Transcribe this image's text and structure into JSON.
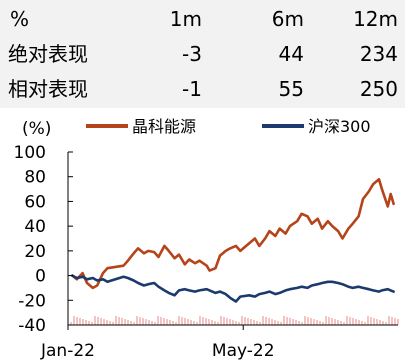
{
  "performance_table": {
    "header": {
      "label": "%",
      "m1": "1m",
      "m6": "6m",
      "m12": "12m"
    },
    "rows": [
      {
        "label": "绝对表现",
        "m1": "-3",
        "m6": "44",
        "m12": "234"
      },
      {
        "label": "相对表现",
        "m1": "-1",
        "m6": "55",
        "m12": "250"
      }
    ]
  },
  "chart_data": {
    "type": "line",
    "ylabel": "(%)",
    "ylim": [
      -40,
      100
    ],
    "yticks": [
      -40,
      -20,
      0,
      20,
      40,
      60,
      80,
      100
    ],
    "xlim": [
      "2022-01-01",
      "2022-08-15"
    ],
    "xticks": [
      {
        "date": "2022-01-01",
        "label": "Jan-22"
      },
      {
        "date": "2022-05-01",
        "label": "May-22"
      }
    ],
    "grid": false,
    "legend_position": "top",
    "series": [
      {
        "name": "晶科能源",
        "color": "#b5441a",
        "points": [
          [
            "2022-01-04",
            0
          ],
          [
            "2022-01-07",
            -3
          ],
          [
            "2022-01-11",
            2
          ],
          [
            "2022-01-14",
            -6
          ],
          [
            "2022-01-18",
            -10
          ],
          [
            "2022-01-21",
            -8
          ],
          [
            "2022-01-25",
            2
          ],
          [
            "2022-01-28",
            6
          ],
          [
            "2022-02-08",
            8
          ],
          [
            "2022-02-11",
            12
          ],
          [
            "2022-02-15",
            18
          ],
          [
            "2022-02-18",
            22
          ],
          [
            "2022-02-22",
            18
          ],
          [
            "2022-02-25",
            20
          ],
          [
            "2022-03-01",
            19
          ],
          [
            "2022-03-04",
            15
          ],
          [
            "2022-03-08",
            24
          ],
          [
            "2022-03-11",
            20
          ],
          [
            "2022-03-15",
            14
          ],
          [
            "2022-03-18",
            17
          ],
          [
            "2022-03-22",
            9
          ],
          [
            "2022-03-25",
            13
          ],
          [
            "2022-03-29",
            10
          ],
          [
            "2022-04-01",
            12
          ],
          [
            "2022-04-06",
            8
          ],
          [
            "2022-04-08",
            4
          ],
          [
            "2022-04-12",
            6
          ],
          [
            "2022-04-15",
            16
          ],
          [
            "2022-04-19",
            20
          ],
          [
            "2022-04-22",
            22
          ],
          [
            "2022-04-26",
            24
          ],
          [
            "2022-04-29",
            20
          ],
          [
            "2022-05-05",
            26
          ],
          [
            "2022-05-09",
            30
          ],
          [
            "2022-05-12",
            24
          ],
          [
            "2022-05-16",
            30
          ],
          [
            "2022-05-19",
            36
          ],
          [
            "2022-05-23",
            32
          ],
          [
            "2022-05-26",
            38
          ],
          [
            "2022-05-30",
            34
          ],
          [
            "2022-06-02",
            40
          ],
          [
            "2022-06-07",
            44
          ],
          [
            "2022-06-10",
            50
          ],
          [
            "2022-06-14",
            48
          ],
          [
            "2022-06-17",
            42
          ],
          [
            "2022-06-21",
            46
          ],
          [
            "2022-06-24",
            38
          ],
          [
            "2022-06-28",
            44
          ],
          [
            "2022-07-01",
            40
          ],
          [
            "2022-07-05",
            36
          ],
          [
            "2022-07-08",
            30
          ],
          [
            "2022-07-12",
            38
          ],
          [
            "2022-07-15",
            42
          ],
          [
            "2022-07-19",
            48
          ],
          [
            "2022-07-22",
            62
          ],
          [
            "2022-07-26",
            68
          ],
          [
            "2022-07-29",
            74
          ],
          [
            "2022-08-02",
            78
          ],
          [
            "2022-08-04",
            70
          ],
          [
            "2022-08-08",
            56
          ],
          [
            "2022-08-10",
            66
          ],
          [
            "2022-08-12",
            58
          ]
        ]
      },
      {
        "name": "沪深300",
        "color": "#1c3a6e",
        "points": [
          [
            "2022-01-04",
            0
          ],
          [
            "2022-01-07",
            -2
          ],
          [
            "2022-01-11",
            -1
          ],
          [
            "2022-01-14",
            -3
          ],
          [
            "2022-01-18",
            -2
          ],
          [
            "2022-01-21",
            -4
          ],
          [
            "2022-01-25",
            -3
          ],
          [
            "2022-01-28",
            -5
          ],
          [
            "2022-02-08",
            -1
          ],
          [
            "2022-02-11",
            -2
          ],
          [
            "2022-02-15",
            -4
          ],
          [
            "2022-02-18",
            -6
          ],
          [
            "2022-02-22",
            -8
          ],
          [
            "2022-02-25",
            -7
          ],
          [
            "2022-03-01",
            -6
          ],
          [
            "2022-03-04",
            -9
          ],
          [
            "2022-03-08",
            -12
          ],
          [
            "2022-03-11",
            -14
          ],
          [
            "2022-03-15",
            -16
          ],
          [
            "2022-03-18",
            -12
          ],
          [
            "2022-03-22",
            -11
          ],
          [
            "2022-03-25",
            -12
          ],
          [
            "2022-03-29",
            -13
          ],
          [
            "2022-04-01",
            -12
          ],
          [
            "2022-04-06",
            -11
          ],
          [
            "2022-04-08",
            -12
          ],
          [
            "2022-04-12",
            -14
          ],
          [
            "2022-04-15",
            -13
          ],
          [
            "2022-04-19",
            -15
          ],
          [
            "2022-04-22",
            -18
          ],
          [
            "2022-04-26",
            -21
          ],
          [
            "2022-04-29",
            -17
          ],
          [
            "2022-05-05",
            -16
          ],
          [
            "2022-05-09",
            -17
          ],
          [
            "2022-05-12",
            -15
          ],
          [
            "2022-05-16",
            -14
          ],
          [
            "2022-05-19",
            -13
          ],
          [
            "2022-05-23",
            -15
          ],
          [
            "2022-05-26",
            -14
          ],
          [
            "2022-05-30",
            -12
          ],
          [
            "2022-06-02",
            -11
          ],
          [
            "2022-06-07",
            -10
          ],
          [
            "2022-06-10",
            -9
          ],
          [
            "2022-06-14",
            -10
          ],
          [
            "2022-06-17",
            -8
          ],
          [
            "2022-06-21",
            -7
          ],
          [
            "2022-06-24",
            -6
          ],
          [
            "2022-06-28",
            -5
          ],
          [
            "2022-07-01",
            -5
          ],
          [
            "2022-07-05",
            -6
          ],
          [
            "2022-07-08",
            -7
          ],
          [
            "2022-07-12",
            -9
          ],
          [
            "2022-07-15",
            -10
          ],
          [
            "2022-07-19",
            -9
          ],
          [
            "2022-07-22",
            -10
          ],
          [
            "2022-07-26",
            -11
          ],
          [
            "2022-07-29",
            -12
          ],
          [
            "2022-08-02",
            -13
          ],
          [
            "2022-08-04",
            -12
          ],
          [
            "2022-08-08",
            -11
          ],
          [
            "2022-08-10",
            -12
          ],
          [
            "2022-08-12",
            -13
          ]
        ]
      }
    ]
  }
}
